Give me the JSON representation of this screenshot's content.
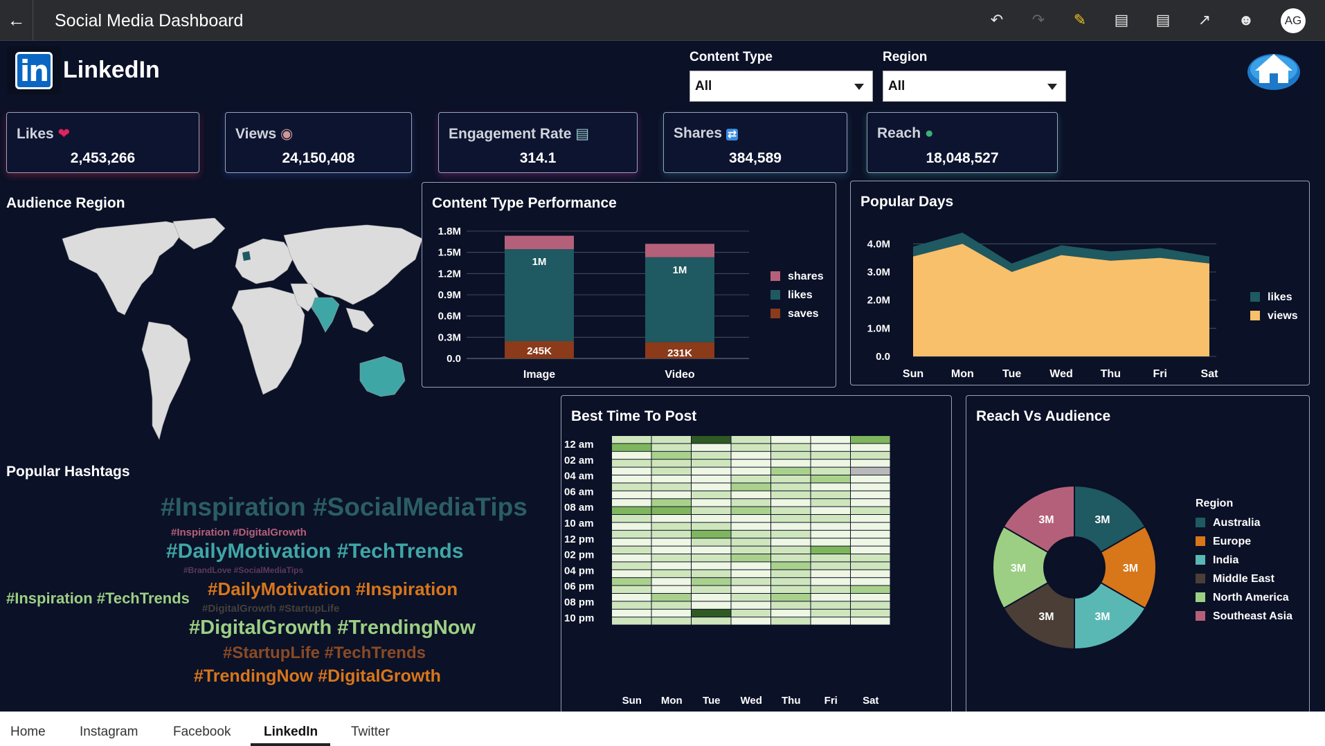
{
  "topbar": {
    "title": "Social Media Dashboard",
    "avatar": "AG",
    "icons": [
      "back-arrow-icon",
      "undo-icon",
      "redo-icon",
      "edit-icon",
      "data-icon",
      "comment-icon",
      "share-icon",
      "user-icon"
    ]
  },
  "header": {
    "platform": "LinkedIn"
  },
  "filters": {
    "content_type": {
      "label": "Content Type",
      "value": "All"
    },
    "region": {
      "label": "Region",
      "value": "All"
    }
  },
  "kpis": [
    {
      "label": "Likes",
      "value": "2,453,266",
      "icon": "heart-icon",
      "glow": "#c02a4a"
    },
    {
      "label": "Views",
      "value": "24,150,408",
      "icon": "eye-icon",
      "glow": "#2a4a9a"
    },
    {
      "label": "Engagement Rate",
      "value": "314.1",
      "icon": "bar-chart-icon",
      "glow": "#9a2a8a"
    },
    {
      "label": "Shares",
      "value": "384,589",
      "icon": "repeat-icon",
      "glow": "#2a6a8a"
    },
    {
      "label": "Reach",
      "value": "18,048,527",
      "icon": "globe-icon",
      "glow": "#2a8a8a"
    }
  ],
  "sections": {
    "audience_region": "Audience Region",
    "popular_hashtags": "Popular Hashtags",
    "content_type_performance": "Content Type Performance",
    "popular_days": "Popular Days",
    "best_time": "Best Time To Post",
    "reach_vs_audience": "Reach Vs Audience"
  },
  "hashtags": [
    {
      "text": "#Inspiration #SocialMediaTips",
      "color": "#2a5e64"
    },
    {
      "text": "#Inspiration #DigitalGrowth",
      "color": "#b5607a"
    },
    {
      "text": "#DailyMotivation #TechTrends",
      "color": "#3fa6a6"
    },
    {
      "text": "#BrandLove #SocialMediaTips",
      "color": "#5e3a5a"
    },
    {
      "text": "#Inspiration #TechTrends",
      "color": "#9ccf84"
    },
    {
      "text": "#DailyMotivation #Inspiration",
      "color": "#d8761a"
    },
    {
      "text": "#DigitalGrowth #StartupLife",
      "color": "#44403a"
    },
    {
      "text": "#DigitalGrowth #TrendingNow",
      "color": "#9ccf84"
    },
    {
      "text": "#StartupLife #TechTrends",
      "color": "#8a4a24"
    },
    {
      "text": "#TrendingNow #DigitalGrowth",
      "color": "#d8761a"
    }
  ],
  "chart_data": [
    {
      "type": "bar",
      "title": "Content Type Performance",
      "stacked": true,
      "categories": [
        "Image",
        "Video"
      ],
      "series": [
        {
          "name": "saves",
          "values": [
            245000,
            231000
          ],
          "color": "#8b3a1a"
        },
        {
          "name": "likes",
          "values": [
            1300000,
            1200000
          ],
          "color": "#1f5961"
        },
        {
          "name": "shares",
          "values": [
            190000,
            190000
          ],
          "color": "#b5607a"
        }
      ],
      "data_labels": [
        "245K",
        "1M",
        "231K",
        "1M"
      ],
      "yticks": [
        "0.0",
        "0.3M",
        "0.6M",
        "0.9M",
        "1.2M",
        "1.5M",
        "1.8M"
      ],
      "ylim": [
        0,
        1800000
      ],
      "legend": "right"
    },
    {
      "type": "area",
      "title": "Popular Days",
      "categories": [
        "Sun",
        "Mon",
        "Tue",
        "Wed",
        "Thu",
        "Fri",
        "Sat"
      ],
      "series": [
        {
          "name": "views",
          "values": [
            3550000,
            4000000,
            3000000,
            3600000,
            3400000,
            3500000,
            3300000
          ],
          "color": "#f8c06a"
        },
        {
          "name": "likes",
          "values": [
            350000,
            400000,
            300000,
            350000,
            330000,
            350000,
            250000
          ],
          "color": "#1f5961"
        }
      ],
      "yticks": [
        "0.0",
        "1.0M",
        "2.0M",
        "3.0M",
        "4.0M"
      ],
      "ylim": [
        0,
        4500000
      ],
      "legend": "right",
      "grid": true
    },
    {
      "type": "heatmap",
      "title": "Best Time To Post",
      "x": [
        "Sun",
        "Mon",
        "Tue",
        "Wed",
        "Thu",
        "Fri",
        "Sat"
      ],
      "y_labels": [
        "12 am",
        "02 am",
        "04 am",
        "06 am",
        "08 am",
        "10 am",
        "12 pm",
        "02 pm",
        "04 pm",
        "06 pm",
        "08 pm",
        "10 pm"
      ],
      "rows": 24,
      "values": [
        [
          1,
          1,
          4,
          1,
          0,
          0,
          3
        ],
        [
          3,
          1,
          0,
          1,
          1,
          0,
          0
        ],
        [
          0,
          2,
          1,
          0,
          1,
          1,
          1
        ],
        [
          1,
          1,
          1,
          0,
          0,
          0,
          0
        ],
        [
          0,
          1,
          0,
          0,
          2,
          1,
          5
        ],
        [
          0,
          0,
          0,
          1,
          1,
          2,
          0
        ],
        [
          1,
          1,
          0,
          2,
          1,
          0,
          0
        ],
        [
          0,
          0,
          1,
          0,
          1,
          1,
          0
        ],
        [
          0,
          2,
          0,
          1,
          0,
          1,
          0
        ],
        [
          3,
          3,
          1,
          2,
          1,
          0,
          1
        ],
        [
          1,
          0,
          0,
          0,
          1,
          1,
          0
        ],
        [
          0,
          1,
          1,
          0,
          0,
          0,
          0
        ],
        [
          1,
          1,
          3,
          1,
          1,
          0,
          0
        ],
        [
          0,
          0,
          1,
          1,
          0,
          0,
          0
        ],
        [
          1,
          0,
          0,
          1,
          1,
          3,
          0
        ],
        [
          0,
          1,
          1,
          2,
          1,
          1,
          1
        ],
        [
          1,
          0,
          0,
          0,
          2,
          1,
          1
        ],
        [
          0,
          1,
          1,
          0,
          1,
          0,
          0
        ],
        [
          2,
          0,
          2,
          1,
          1,
          0,
          0
        ],
        [
          1,
          0,
          1,
          0,
          1,
          1,
          2
        ],
        [
          0,
          2,
          0,
          1,
          2,
          0,
          0
        ],
        [
          1,
          1,
          0,
          0,
          1,
          1,
          1
        ],
        [
          0,
          0,
          4,
          1,
          0,
          1,
          1
        ],
        [
          1,
          1,
          1,
          0,
          1,
          0,
          0
        ]
      ]
    },
    {
      "type": "pie",
      "title": "Reach Vs Audience",
      "legend_title": "Region",
      "donut": true,
      "slices": [
        {
          "name": "Australia",
          "value": 3,
          "label": "3M",
          "color": "#1f5961"
        },
        {
          "name": "Europe",
          "value": 3,
          "label": "3M",
          "color": "#d8761a"
        },
        {
          "name": "India",
          "value": 3,
          "label": "3M",
          "color": "#5ab8b4"
        },
        {
          "name": "Middle East",
          "value": 3,
          "label": "3M",
          "color": "#4a3e36"
        },
        {
          "name": "North America",
          "value": 3,
          "label": "3M",
          "color": "#9ccf84"
        },
        {
          "name": "Southeast Asia",
          "value": 3,
          "label": "3M",
          "color": "#b5607a"
        }
      ],
      "legend": "right"
    }
  ],
  "bottom_tabs": [
    {
      "label": "Home",
      "active": false
    },
    {
      "label": "Instagram",
      "active": false
    },
    {
      "label": "Facebook",
      "active": false
    },
    {
      "label": "LinkedIn",
      "active": true
    },
    {
      "label": "Twitter",
      "active": false
    }
  ]
}
